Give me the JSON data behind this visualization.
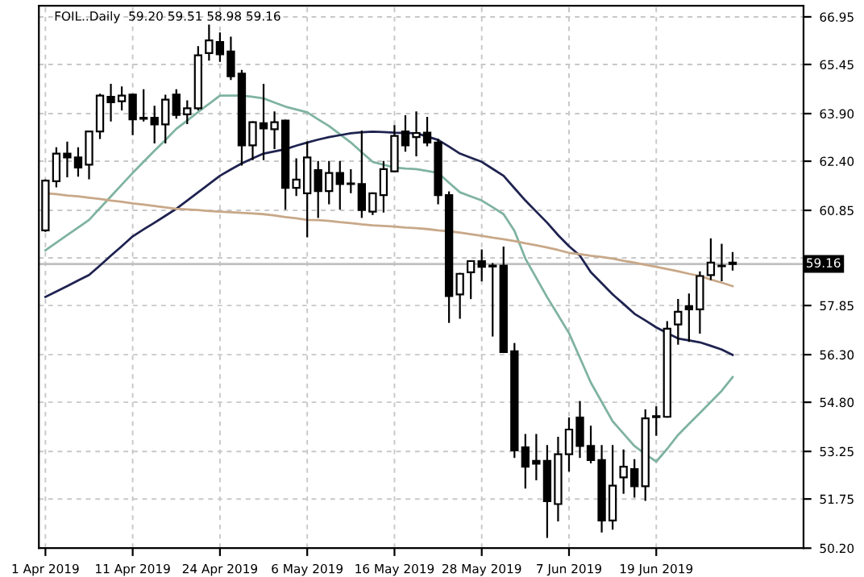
{
  "chart_data": {
    "type": "candlestick",
    "title": "FOIL..Daily  59.20 59.51 58.98 59.16",
    "categories": [
      "1 Apr 2019",
      null,
      null,
      null,
      null,
      null,
      null,
      null,
      "11 Apr 2019",
      null,
      null,
      null,
      null,
      null,
      null,
      null,
      "24 Apr 2019",
      null,
      null,
      null,
      null,
      null,
      null,
      null,
      "6 May 2019",
      null,
      null,
      null,
      null,
      null,
      null,
      null,
      "16 May 2019",
      null,
      null,
      null,
      null,
      null,
      null,
      null,
      "28 May 2019",
      null,
      null,
      null,
      null,
      null,
      null,
      null,
      "7 Jun 2019",
      null,
      null,
      null,
      null,
      null,
      null,
      null,
      "19 Jun 2019",
      null,
      null,
      null,
      null,
      null,
      null,
      null
    ],
    "ohlc": [
      [
        60.22,
        61.8,
        60.2,
        61.79
      ],
      [
        61.77,
        62.81,
        61.6,
        62.64
      ],
      [
        62.64,
        62.99,
        61.92,
        62.52
      ],
      [
        62.52,
        62.81,
        61.94,
        62.2
      ],
      [
        62.29,
        63.34,
        61.86,
        63.34
      ],
      [
        63.34,
        64.5,
        63.13,
        64.47
      ],
      [
        64.43,
        64.81,
        63.68,
        64.26
      ],
      [
        64.29,
        64.73,
        64.03,
        64.47
      ],
      [
        64.5,
        64.5,
        63.25,
        63.72
      ],
      [
        63.77,
        64.64,
        63.68,
        63.74
      ],
      [
        63.77,
        64.12,
        62.99,
        63.56
      ],
      [
        63.56,
        64.47,
        62.99,
        64.34
      ],
      [
        64.5,
        64.64,
        63.77,
        63.86
      ],
      [
        63.88,
        64.29,
        63.6,
        64.07
      ],
      [
        64.07,
        66.0,
        64.03,
        65.74
      ],
      [
        65.81,
        66.68,
        65.6,
        66.21
      ],
      [
        66.16,
        66.43,
        65.56,
        65.77
      ],
      [
        65.86,
        66.3,
        64.99,
        65.08
      ],
      [
        65.16,
        65.25,
        62.29,
        62.9
      ],
      [
        62.9,
        63.63,
        62.46,
        63.63
      ],
      [
        63.6,
        64.81,
        62.46,
        63.43
      ],
      [
        63.41,
        63.94,
        62.81,
        63.63
      ],
      [
        63.68,
        63.68,
        60.9,
        61.56
      ],
      [
        61.56,
        62.46,
        61.33,
        61.82
      ],
      [
        61.39,
        62.99,
        60.03,
        62.52
      ],
      [
        62.12,
        62.38,
        60.64,
        61.46
      ],
      [
        61.46,
        62.38,
        61.07,
        62.03
      ],
      [
        62.03,
        62.38,
        60.9,
        61.68
      ],
      [
        61.7,
        62.12,
        61.42,
        61.68
      ],
      [
        61.68,
        63.34,
        60.64,
        60.86
      ],
      [
        60.81,
        61.39,
        60.73,
        61.39
      ],
      [
        61.33,
        62.38,
        60.81,
        62.15
      ],
      [
        62.08,
        63.51,
        62.08,
        63.2
      ],
      [
        63.34,
        63.82,
        62.73,
        62.9
      ],
      [
        63.16,
        63.94,
        62.58,
        63.29
      ],
      [
        63.3,
        63.77,
        62.9,
        62.99
      ],
      [
        62.99,
        63.08,
        61.07,
        61.33
      ],
      [
        61.33,
        61.42,
        57.33,
        58.15
      ],
      [
        58.2,
        58.85,
        57.46,
        58.85
      ],
      [
        58.9,
        59.25,
        58.08,
        59.25
      ],
      [
        59.25,
        59.59,
        58.64,
        59.07
      ],
      [
        59.11,
        59.16,
        56.9,
        59.08
      ],
      [
        59.11,
        59.68,
        56.38,
        56.38
      ],
      [
        56.41,
        56.64,
        53.07,
        53.28
      ],
      [
        53.38,
        53.77,
        52.11,
        52.77
      ],
      [
        52.95,
        53.77,
        52.37,
        52.86
      ],
      [
        52.95,
        53.42,
        50.55,
        51.68
      ],
      [
        51.59,
        53.68,
        51.07,
        53.16
      ],
      [
        53.16,
        54.29,
        52.64,
        53.94
      ],
      [
        54.32,
        54.81,
        53.07,
        53.42
      ],
      [
        53.42,
        54.03,
        52.9,
        52.98
      ],
      [
        52.98,
        53.42,
        50.72,
        51.07
      ],
      [
        51.07,
        53.42,
        50.81,
        52.17
      ],
      [
        52.43,
        53.28,
        51.94,
        52.77
      ],
      [
        52.69,
        52.98,
        51.82,
        52.15
      ],
      [
        52.15,
        54.55,
        51.72,
        54.29
      ],
      [
        54.33,
        54.64,
        53.77,
        54.36
      ],
      [
        54.34,
        57.33,
        54.34,
        57.12
      ],
      [
        57.25,
        58.03,
        56.64,
        57.65
      ],
      [
        57.83,
        58.2,
        56.73,
        57.73
      ],
      [
        57.73,
        58.9,
        56.99,
        58.78
      ],
      [
        58.81,
        59.94,
        58.68,
        59.2
      ],
      [
        59.11,
        59.77,
        58.64,
        59.09
      ],
      [
        59.2,
        59.51,
        58.98,
        59.16
      ]
    ],
    "series": [
      {
        "type": "line",
        "color": "#7fb3a0",
        "values": [
          59.59,
          59.83,
          60.07,
          60.31,
          60.55,
          60.92,
          61.29,
          61.66,
          62.03,
          62.38,
          62.73,
          63.07,
          63.42,
          63.68,
          63.95,
          64.21,
          64.47,
          64.47,
          64.47,
          64.43,
          64.38,
          64.25,
          64.12,
          64.03,
          63.94,
          63.72,
          63.51,
          63.25,
          62.99,
          62.68,
          62.38,
          62.29,
          62.2,
          62.17,
          62.15,
          62.09,
          62.03,
          61.72,
          61.42,
          61.29,
          61.16,
          60.95,
          60.73,
          60.2,
          59.33,
          58.72,
          58.11,
          57.55,
          56.98,
          56.2,
          55.42,
          54.81,
          54.2,
          53.81,
          53.42,
          53.16,
          52.93,
          53.33,
          53.77,
          54.12,
          54.46,
          54.81,
          55.16,
          55.59
        ]
      },
      {
        "type": "line",
        "color": "#1f2350",
        "values": [
          58.12,
          58.29,
          58.46,
          58.64,
          58.81,
          59.11,
          59.42,
          59.72,
          60.03,
          60.25,
          60.46,
          60.68,
          60.9,
          61.16,
          61.42,
          61.68,
          61.94,
          62.14,
          62.33,
          62.49,
          62.64,
          62.71,
          62.78,
          62.89,
          62.99,
          63.08,
          63.16,
          63.22,
          63.28,
          63.31,
          63.33,
          63.32,
          63.3,
          63.29,
          63.28,
          63.18,
          63.07,
          62.86,
          62.64,
          62.51,
          62.38,
          62.16,
          61.94,
          61.55,
          61.16,
          60.81,
          60.46,
          60.07,
          59.72,
          59.42,
          58.9,
          58.55,
          58.2,
          57.9,
          57.59,
          57.38,
          57.16,
          56.98,
          56.81,
          56.75,
          56.69,
          56.58,
          56.46,
          56.29
        ]
      },
      {
        "type": "line",
        "color": "#c8a888",
        "values": [
          61.39,
          61.36,
          61.32,
          61.29,
          61.25,
          61.21,
          61.16,
          61.12,
          61.07,
          61.03,
          60.99,
          60.94,
          60.9,
          60.88,
          60.86,
          60.83,
          60.81,
          60.79,
          60.77,
          60.75,
          60.73,
          60.69,
          60.64,
          60.6,
          60.55,
          60.54,
          60.52,
          60.48,
          60.45,
          60.41,
          60.38,
          60.36,
          60.34,
          60.31,
          60.29,
          60.26,
          60.22,
          60.19,
          60.15,
          60.1,
          60.05,
          59.99,
          59.94,
          59.88,
          59.81,
          59.75,
          59.68,
          59.6,
          59.51,
          59.47,
          59.42,
          59.38,
          59.33,
          59.26,
          59.2,
          59.13,
          59.07,
          59.0,
          58.93,
          58.85,
          58.78,
          58.67,
          58.57,
          58.46
        ]
      }
    ],
    "ylim": [
      50.2,
      67.3
    ],
    "yticks": [
      {
        "value": 50.2,
        "label": "50.20"
      },
      51.75,
      53.25,
      {
        "value": 54.8,
        "label": "54.80"
      },
      {
        "value": 56.3,
        "label": "56.30"
      },
      57.85,
      {
        "value": 59.35,
        "label": null
      },
      60.85,
      {
        "value": 62.4,
        "label": "62.40"
      },
      {
        "value": 63.9,
        "label": "63.90"
      },
      65.45,
      66.95
    ],
    "ref_lines": [
      {
        "axis": "y",
        "value": 59.16,
        "label": "59.16",
        "color": "#c0c0c0"
      }
    ],
    "grid": true
  }
}
